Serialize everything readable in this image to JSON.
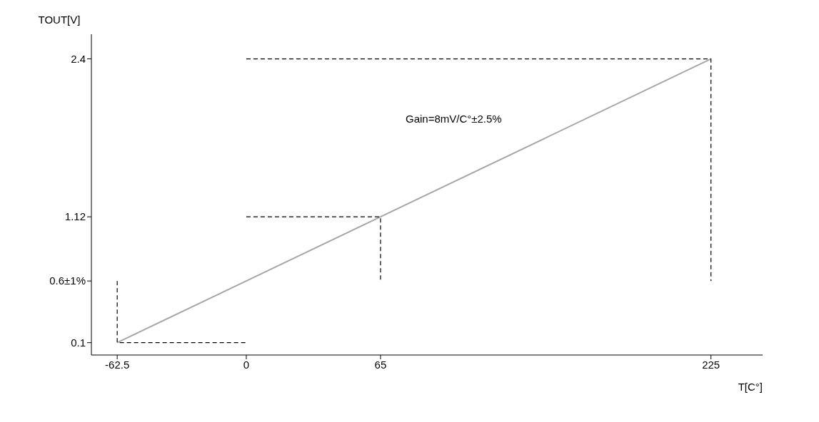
{
  "chart_data": {
    "type": "line",
    "xlabel": "T[C°]",
    "ylabel": "TOUT[V]",
    "annotations": [
      "Gain=8mV/C°±2.5%"
    ],
    "xlim": [
      -75,
      250
    ],
    "xticks": [
      -62.5,
      0,
      65,
      225
    ],
    "ylim": [
      0,
      2.6
    ],
    "yticks": [
      0.1,
      {
        "value": 0.6,
        "label": "0.6±1%"
      },
      1.12,
      2.4
    ],
    "grid": false,
    "legend": false,
    "marker": "none",
    "series": [
      {
        "color": "#a6a6a6",
        "x": [
          -62.5,
          0,
          65,
          225
        ],
        "values": [
          0.1,
          0.6,
          1.12,
          2.4
        ],
        "line_style": "solid"
      },
      {
        "color": "#000000",
        "x": [
          -62.5,
          -62.5,
          0
        ],
        "values": [
          0.6,
          0.1,
          0.1
        ],
        "line_style": "dashed"
      },
      {
        "color": "#000000",
        "x": [
          0,
          65,
          65
        ],
        "values": [
          1.12,
          1.12,
          0.6
        ],
        "line_style": "dashed"
      },
      {
        "color": "#000000",
        "x": [
          0,
          225,
          225
        ],
        "values": [
          2.4,
          2.4,
          0.6
        ],
        "line_style": "dashed"
      }
    ]
  }
}
